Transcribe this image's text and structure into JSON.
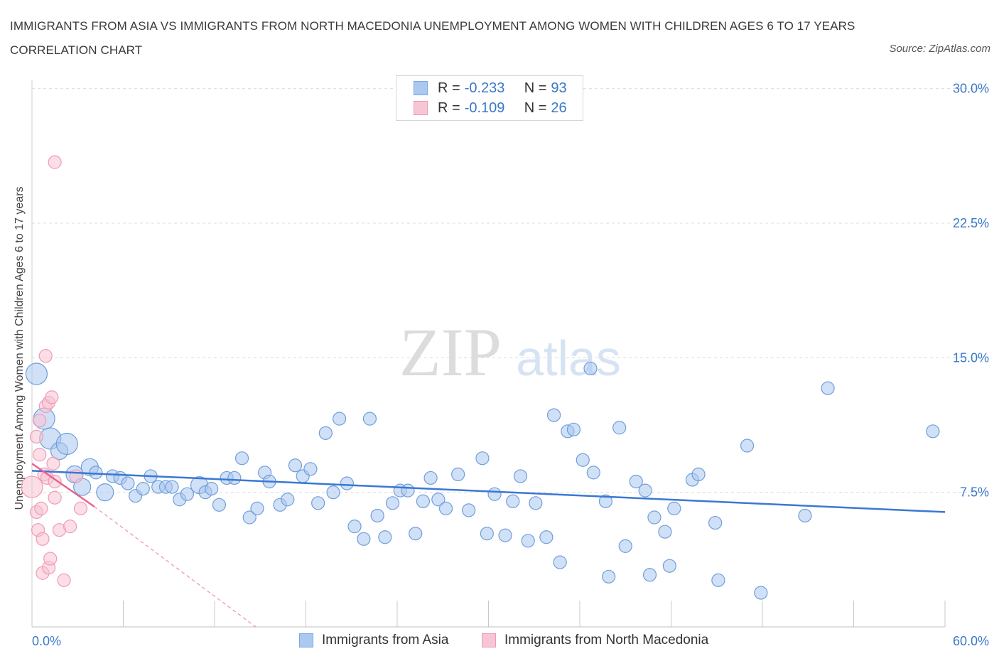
{
  "header": {
    "title": "IMMIGRANTS FROM ASIA VS IMMIGRANTS FROM NORTH MACEDONIA UNEMPLOYMENT AMONG WOMEN WITH CHILDREN AGES 6 TO 17 YEARS CORRELATION CHART",
    "source": "Source: ZipAtlas.com"
  },
  "watermark": {
    "zip": "ZIP",
    "atlas": "atlas"
  },
  "legend": {
    "series": [
      {
        "r_label": "R = ",
        "r_value": "-0.233",
        "n_label": "N = ",
        "n_value": "93",
        "color": "#aac8f0",
        "border": "#7fa7e0"
      },
      {
        "r_label": "R = ",
        "r_value": "-0.109",
        "n_label": "N = ",
        "n_value": "26",
        "color": "#f7c6d4",
        "border": "#ec9ab4"
      }
    ]
  },
  "bottom_legend": {
    "asia": "Immigrants from Asia",
    "macedonia": "Immigrants from North Macedonia"
  },
  "chart_data": {
    "type": "scatter",
    "title": "IMMIGRANTS FROM ASIA VS IMMIGRANTS FROM NORTH MACEDONIA UNEMPLOYMENT AMONG WOMEN WITH CHILDREN AGES 6 TO 17 YEARS CORRELATION CHART",
    "xlabel": "",
    "ylabel": "Unemployment Among Women with Children Ages 6 to 17 years",
    "xlim": [
      0,
      60
    ],
    "ylim": [
      0,
      30.5
    ],
    "x_tick_labels": [
      {
        "value": 0,
        "label": "0.0%"
      },
      {
        "value": 60,
        "label": "60.0%"
      }
    ],
    "y_tick_labels": [
      {
        "value": 7.5,
        "label": "7.5%"
      },
      {
        "value": 15,
        "label": "15.0%"
      },
      {
        "value": 22.5,
        "label": "22.5%"
      },
      {
        "value": 30,
        "label": "30.0%"
      }
    ],
    "grid": true,
    "series": [
      {
        "name": "Immigrants from Asia",
        "color": "#a9c7ef",
        "stroke": "#6f9fdb",
        "trend": {
          "x": [
            0,
            60
          ],
          "y": [
            8.7,
            6.4
          ],
          "color": "#3a78d4"
        },
        "points": [
          {
            "x": 0.3,
            "y": 14.1,
            "s": 3
          },
          {
            "x": 0.8,
            "y": 11.6,
            "s": 3
          },
          {
            "x": 1.2,
            "y": 10.5,
            "s": 3
          },
          {
            "x": 1.8,
            "y": 9.8,
            "s": 2
          },
          {
            "x": 2.3,
            "y": 10.2,
            "s": 3
          },
          {
            "x": 2.8,
            "y": 8.5,
            "s": 2
          },
          {
            "x": 3.3,
            "y": 7.8,
            "s": 2
          },
          {
            "x": 3.8,
            "y": 8.9,
            "s": 2
          },
          {
            "x": 4.2,
            "y": 8.6,
            "s": 1
          },
          {
            "x": 4.8,
            "y": 7.5,
            "s": 2
          },
          {
            "x": 5.3,
            "y": 8.4,
            "s": 1
          },
          {
            "x": 5.8,
            "y": 8.3,
            "s": 1
          },
          {
            "x": 6.3,
            "y": 8.0,
            "s": 1
          },
          {
            "x": 6.8,
            "y": 7.3,
            "s": 1
          },
          {
            "x": 7.3,
            "y": 7.7,
            "s": 1
          },
          {
            "x": 7.8,
            "y": 8.4,
            "s": 1
          },
          {
            "x": 8.3,
            "y": 7.8,
            "s": 1
          },
          {
            "x": 8.8,
            "y": 7.8,
            "s": 1
          },
          {
            "x": 9.2,
            "y": 7.8,
            "s": 1
          },
          {
            "x": 9.7,
            "y": 7.1,
            "s": 1
          },
          {
            "x": 10.2,
            "y": 7.4,
            "s": 1
          },
          {
            "x": 11.0,
            "y": 7.9,
            "s": 2
          },
          {
            "x": 11.4,
            "y": 7.5,
            "s": 1
          },
          {
            "x": 11.8,
            "y": 7.7,
            "s": 1
          },
          {
            "x": 12.3,
            "y": 6.8,
            "s": 1
          },
          {
            "x": 12.8,
            "y": 8.3,
            "s": 1
          },
          {
            "x": 13.3,
            "y": 8.3,
            "s": 1
          },
          {
            "x": 13.8,
            "y": 9.4,
            "s": 1
          },
          {
            "x": 14.3,
            "y": 6.1,
            "s": 1
          },
          {
            "x": 14.8,
            "y": 6.6,
            "s": 1
          },
          {
            "x": 15.3,
            "y": 8.6,
            "s": 1
          },
          {
            "x": 15.6,
            "y": 8.1,
            "s": 1
          },
          {
            "x": 16.3,
            "y": 6.8,
            "s": 1
          },
          {
            "x": 16.8,
            "y": 7.1,
            "s": 1
          },
          {
            "x": 17.3,
            "y": 9.0,
            "s": 1
          },
          {
            "x": 17.8,
            "y": 8.4,
            "s": 1
          },
          {
            "x": 18.3,
            "y": 8.8,
            "s": 1
          },
          {
            "x": 18.8,
            "y": 6.9,
            "s": 1
          },
          {
            "x": 19.3,
            "y": 10.8,
            "s": 1
          },
          {
            "x": 19.8,
            "y": 7.5,
            "s": 1
          },
          {
            "x": 20.2,
            "y": 11.6,
            "s": 1
          },
          {
            "x": 20.7,
            "y": 8.0,
            "s": 1
          },
          {
            "x": 21.2,
            "y": 5.6,
            "s": 1
          },
          {
            "x": 21.8,
            "y": 4.9,
            "s": 1
          },
          {
            "x": 22.2,
            "y": 11.6,
            "s": 1
          },
          {
            "x": 22.7,
            "y": 6.2,
            "s": 1
          },
          {
            "x": 23.2,
            "y": 5.0,
            "s": 1
          },
          {
            "x": 23.7,
            "y": 6.9,
            "s": 1
          },
          {
            "x": 24.2,
            "y": 7.6,
            "s": 1
          },
          {
            "x": 24.7,
            "y": 7.6,
            "s": 1
          },
          {
            "x": 25.2,
            "y": 5.2,
            "s": 1
          },
          {
            "x": 25.7,
            "y": 7.0,
            "s": 1
          },
          {
            "x": 26.2,
            "y": 8.3,
            "s": 1
          },
          {
            "x": 26.7,
            "y": 7.1,
            "s": 1
          },
          {
            "x": 27.2,
            "y": 6.6,
            "s": 1
          },
          {
            "x": 28.0,
            "y": 8.5,
            "s": 1
          },
          {
            "x": 28.7,
            "y": 6.5,
            "s": 1
          },
          {
            "x": 29.6,
            "y": 9.4,
            "s": 1
          },
          {
            "x": 29.9,
            "y": 5.2,
            "s": 1
          },
          {
            "x": 30.4,
            "y": 7.4,
            "s": 1
          },
          {
            "x": 31.1,
            "y": 5.1,
            "s": 1
          },
          {
            "x": 31.6,
            "y": 7.0,
            "s": 1
          },
          {
            "x": 32.1,
            "y": 8.4,
            "s": 1
          },
          {
            "x": 32.6,
            "y": 4.8,
            "s": 1
          },
          {
            "x": 33.1,
            "y": 6.9,
            "s": 1
          },
          {
            "x": 33.8,
            "y": 5.0,
            "s": 1
          },
          {
            "x": 34.3,
            "y": 11.8,
            "s": 1
          },
          {
            "x": 34.7,
            "y": 3.6,
            "s": 1
          },
          {
            "x": 35.2,
            "y": 10.9,
            "s": 1
          },
          {
            "x": 35.6,
            "y": 11.0,
            "s": 1
          },
          {
            "x": 36.2,
            "y": 9.3,
            "s": 1
          },
          {
            "x": 36.7,
            "y": 14.4,
            "s": 1
          },
          {
            "x": 36.9,
            "y": 8.6,
            "s": 1
          },
          {
            "x": 37.7,
            "y": 7.0,
            "s": 1
          },
          {
            "x": 37.9,
            "y": 2.8,
            "s": 1
          },
          {
            "x": 38.6,
            "y": 11.1,
            "s": 1
          },
          {
            "x": 39.0,
            "y": 4.5,
            "s": 1
          },
          {
            "x": 39.7,
            "y": 8.1,
            "s": 1
          },
          {
            "x": 40.3,
            "y": 7.6,
            "s": 1
          },
          {
            "x": 40.9,
            "y": 6.1,
            "s": 1
          },
          {
            "x": 40.6,
            "y": 2.9,
            "s": 1
          },
          {
            "x": 41.6,
            "y": 5.3,
            "s": 1
          },
          {
            "x": 41.9,
            "y": 3.4,
            "s": 1
          },
          {
            "x": 42.2,
            "y": 6.6,
            "s": 1
          },
          {
            "x": 43.4,
            "y": 8.2,
            "s": 1
          },
          {
            "x": 43.8,
            "y": 8.5,
            "s": 1
          },
          {
            "x": 44.9,
            "y": 5.8,
            "s": 1
          },
          {
            "x": 45.1,
            "y": 2.6,
            "s": 1
          },
          {
            "x": 47.0,
            "y": 10.1,
            "s": 1
          },
          {
            "x": 47.9,
            "y": 1.9,
            "s": 1
          },
          {
            "x": 50.8,
            "y": 6.2,
            "s": 1
          },
          {
            "x": 52.3,
            "y": 13.3,
            "s": 1
          },
          {
            "x": 59.2,
            "y": 10.9,
            "s": 1
          }
        ]
      },
      {
        "name": "Immigrants from North Macedonia",
        "color": "#f7c3d2",
        "stroke": "#ee9cb6",
        "trend": {
          "x": [
            0,
            4.1
          ],
          "y": [
            9.1,
            6.7
          ],
          "color": "#e8648f",
          "extend_dashed_to": {
            "x": 14.7,
            "y": 0
          }
        },
        "points": [
          {
            "x": 0.0,
            "y": 7.8,
            "s": 3
          },
          {
            "x": 0.3,
            "y": 6.4,
            "s": 1
          },
          {
            "x": 0.3,
            "y": 10.6,
            "s": 1
          },
          {
            "x": 0.4,
            "y": 5.4,
            "s": 1
          },
          {
            "x": 0.5,
            "y": 11.5,
            "s": 1
          },
          {
            "x": 0.6,
            "y": 6.6,
            "s": 1
          },
          {
            "x": 0.7,
            "y": 3.0,
            "s": 1
          },
          {
            "x": 0.7,
            "y": 4.9,
            "s": 1
          },
          {
            "x": 0.8,
            "y": 8.5,
            "s": 1
          },
          {
            "x": 0.9,
            "y": 12.3,
            "s": 1
          },
          {
            "x": 0.9,
            "y": 15.1,
            "s": 1
          },
          {
            "x": 1.0,
            "y": 8.3,
            "s": 1
          },
          {
            "x": 1.1,
            "y": 12.5,
            "s": 1
          },
          {
            "x": 1.1,
            "y": 3.3,
            "s": 1
          },
          {
            "x": 1.2,
            "y": 3.8,
            "s": 1
          },
          {
            "x": 1.3,
            "y": 12.8,
            "s": 1
          },
          {
            "x": 1.4,
            "y": 9.1,
            "s": 1
          },
          {
            "x": 1.5,
            "y": 7.2,
            "s": 1
          },
          {
            "x": 1.5,
            "y": 25.9,
            "s": 1
          },
          {
            "x": 1.5,
            "y": 8.1,
            "s": 1
          },
          {
            "x": 1.8,
            "y": 5.4,
            "s": 1
          },
          {
            "x": 2.1,
            "y": 2.6,
            "s": 1
          },
          {
            "x": 2.5,
            "y": 5.6,
            "s": 1
          },
          {
            "x": 2.9,
            "y": 8.4,
            "s": 1
          },
          {
            "x": 3.2,
            "y": 6.6,
            "s": 1
          },
          {
            "x": 0.5,
            "y": 9.6,
            "s": 1
          }
        ]
      }
    ]
  }
}
